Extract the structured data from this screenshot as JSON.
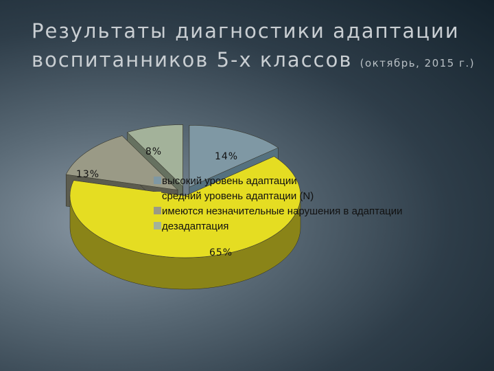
{
  "slide": {
    "title_line1": "Результаты диагностики адаптации",
    "title_line2": "воспитанников 5-х классов",
    "title_note": "(октябрь, 2015 г.)"
  },
  "chart_data": {
    "type": "pie",
    "style": "3d-exploded",
    "legend_position": "center-right",
    "series": [
      {
        "name": "высокий уровень адаптации",
        "value": 14,
        "label": "14%",
        "color": "#7f98a4",
        "side": "#55717f"
      },
      {
        "name": "средний  уровень адаптации (N)",
        "value": 65,
        "label": "65%",
        "color": "#e5dd22",
        "side": "#8a8418"
      },
      {
        "name": "имеются незначительные нарушения в адаптации",
        "value": 13,
        "label": "13%",
        "color": "#9a9a86",
        "side": "#5c5c4f"
      },
      {
        "name": "дезадаптация",
        "value": 8,
        "label": "8%",
        "color": "#a3b29a",
        "side": "#667160"
      }
    ]
  }
}
